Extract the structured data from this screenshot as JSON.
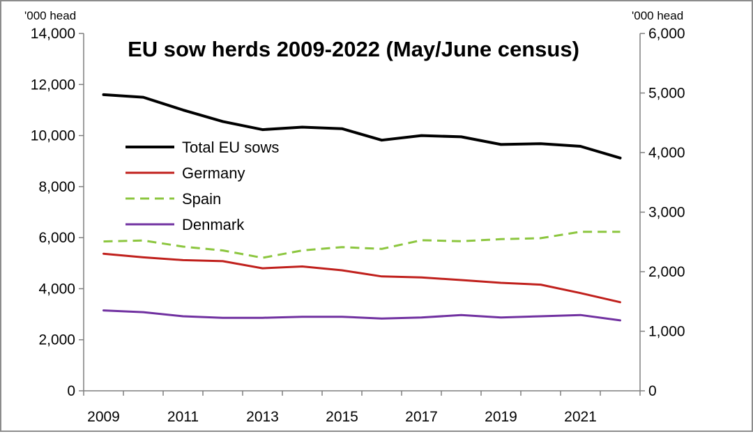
{
  "chart_data": {
    "type": "line",
    "title": "EU sow herds 2009-2022 (May/June census)",
    "y_left_unit": "'000 head",
    "y_right_unit": "'000 head",
    "x": [
      2009,
      2010,
      2011,
      2012,
      2013,
      2014,
      2015,
      2016,
      2017,
      2018,
      2019,
      2020,
      2021,
      2022
    ],
    "x_ticks": [
      2009,
      2011,
      2013,
      2015,
      2017,
      2019,
      2021
    ],
    "x_tick_labels": [
      "2009",
      "2011",
      "2013",
      "2015",
      "2017",
      "2019",
      "2021"
    ],
    "ylim_left": [
      0,
      14000
    ],
    "ylim_right": [
      0,
      6000
    ],
    "y_left_ticks": [
      0,
      2000,
      4000,
      6000,
      8000,
      10000,
      12000,
      14000
    ],
    "y_left_tick_labels": [
      "0",
      "2,000",
      "4,000",
      "6,000",
      "8,000",
      "10,000",
      "12,000",
      "14,000"
    ],
    "y_right_ticks": [
      0,
      1000,
      2000,
      3000,
      4000,
      5000,
      6000
    ],
    "y_right_tick_labels": [
      "0",
      "1,000",
      "2,000",
      "3,000",
      "4,000",
      "5,000",
      "6,000"
    ],
    "grid": false,
    "legend_position": "left-middle",
    "series": [
      {
        "name": "Total EU sows",
        "axis": "left",
        "color": "#000000",
        "style": "solid",
        "values": [
          11600,
          11500,
          11000,
          10550,
          10230,
          10330,
          10270,
          9820,
          10000,
          9950,
          9650,
          9680,
          9580,
          9120
        ]
      },
      {
        "name": "Germany",
        "axis": "left",
        "color": "#c0201c",
        "style": "solid",
        "values": [
          5370,
          5230,
          5120,
          5080,
          4800,
          4870,
          4720,
          4480,
          4440,
          4340,
          4230,
          4160,
          3830,
          3470
        ]
      },
      {
        "name": "Spain",
        "axis": "left",
        "color": "#8cc63f",
        "style": "dashed",
        "values": [
          5850,
          5890,
          5650,
          5500,
          5210,
          5500,
          5630,
          5560,
          5900,
          5860,
          5940,
          5980,
          6230,
          6230
        ]
      },
      {
        "name": "Denmark",
        "axis": "left",
        "color": "#7030a0",
        "style": "solid",
        "values": [
          3150,
          3080,
          2920,
          2860,
          2860,
          2900,
          2900,
          2830,
          2870,
          2970,
          2870,
          2920,
          2970,
          2760
        ]
      }
    ]
  }
}
